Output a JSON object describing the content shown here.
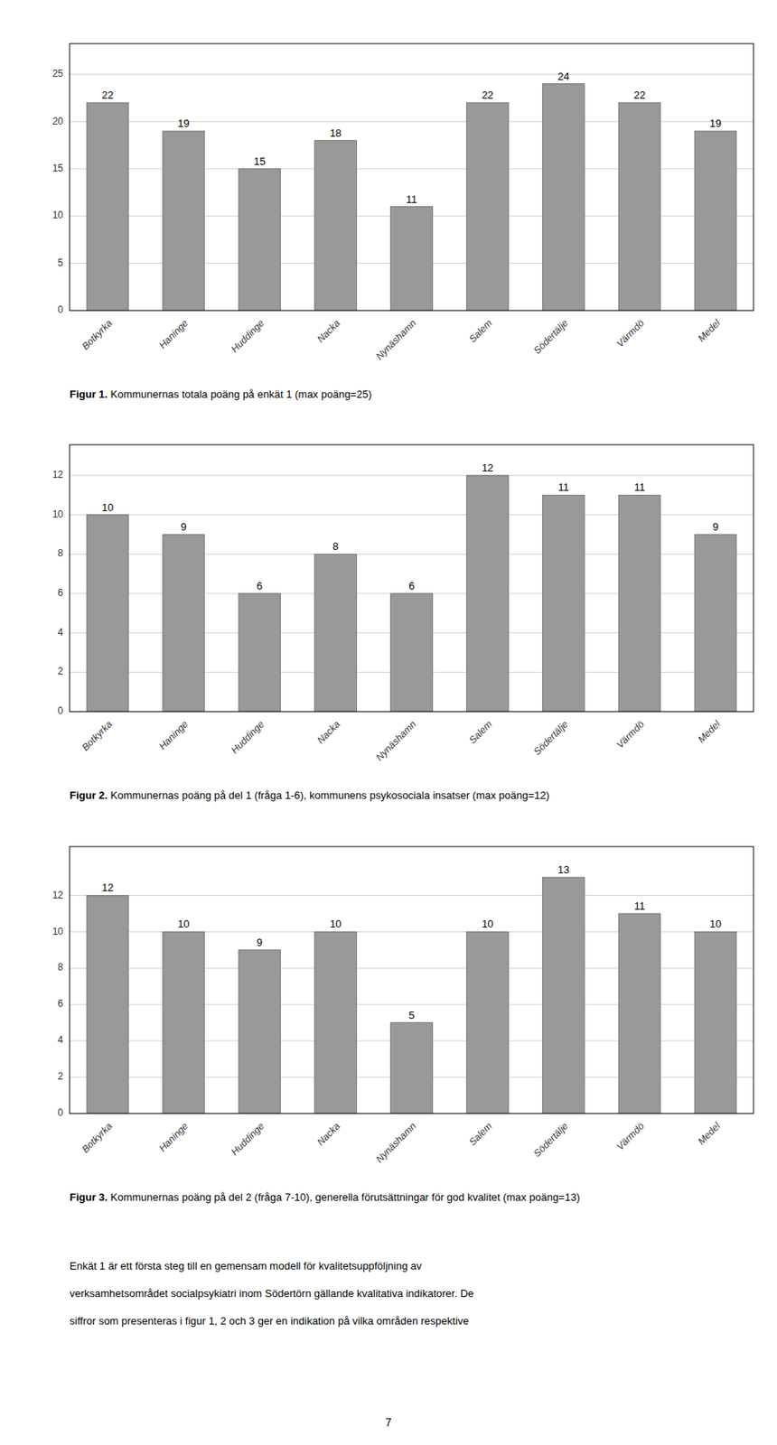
{
  "chart_data": [
    {
      "type": "bar",
      "title": "Figur 1. Kommunernas totala poäng på enkät 1 (max poäng=25)",
      "categories": [
        "Botkyrka",
        "Haninge",
        "Huddinge",
        "Nacka",
        "Nynäshamn",
        "Salem",
        "Södertälje",
        "Värmdö",
        "Medel"
      ],
      "values": [
        22,
        19,
        15,
        18,
        11,
        22,
        24,
        22,
        19
      ],
      "color": "#999999",
      "ylim": [
        0,
        28.25
      ],
      "yticks": [
        0,
        5,
        10,
        15,
        20,
        25
      ],
      "grid": true,
      "data_labels": true
    },
    {
      "type": "bar",
      "title": "Figur 2. Kommunernas poäng på del 1 (fråga 1-6), kommunens psykosociala insatser (max poäng=12)",
      "categories": [
        "Botkyrka",
        "Haninge",
        "Huddinge",
        "Nacka",
        "Nynäshamn",
        "Salem",
        "Södertälje",
        "Värmdö",
        "Medel"
      ],
      "values": [
        10,
        9,
        6,
        8,
        6,
        12,
        11,
        11,
        9
      ],
      "color": "#999999",
      "ylim": [
        0,
        13.56
      ],
      "yticks": [
        0,
        2,
        4,
        6,
        8,
        10,
        12
      ],
      "grid": true,
      "data_labels": true
    },
    {
      "type": "bar",
      "title": "Figur 3. Kommunernas poäng på del 2 (fråga 7-10), generella förutsättningar för god kvalitet (max poäng=13)",
      "categories": [
        "Botkyrka",
        "Haninge",
        "Huddinge",
        "Nacka",
        "Nynäshamn",
        "Salem",
        "Södertälje",
        "Värmdö",
        "Medel"
      ],
      "values": [
        12,
        10,
        9,
        10,
        5,
        10,
        13,
        11,
        10
      ],
      "color": "#999999",
      "ylim": [
        0,
        14.69
      ],
      "yticks": [
        0,
        2,
        4,
        6,
        8,
        10,
        12
      ],
      "grid": true,
      "data_labels": true
    }
  ],
  "annotations": [
    "Enkät 1 är ett första steg till en gemensam modell för kvalitetsuppföljning av",
    "verksamhetsområdet socialpsykiatri inom Södertörn gällande kvalitativa indikatorer. De",
    "siffror som presenteras i figur 1, 2 och 3 ger en indikation på vilka områden respektive"
  ],
  "page_number": "7"
}
